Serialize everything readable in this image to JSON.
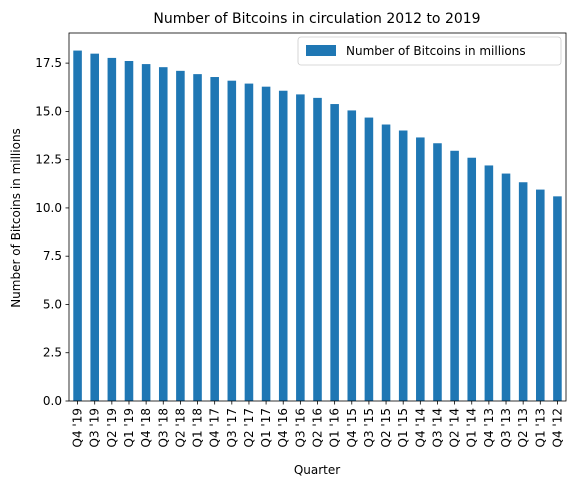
{
  "chart_data": {
    "type": "bar",
    "title": "Number of Bitcoins in circulation 2012 to 2019",
    "xlabel": "Quarter",
    "ylabel": "Number of Bitcoins in millions",
    "categories": [
      "Q4 '19",
      "Q3 '19",
      "Q2 '19",
      "Q1 '19",
      "Q4 '18",
      "Q3 '18",
      "Q2 '18",
      "Q1 '18",
      "Q4 '17",
      "Q3 '17",
      "Q2 '17",
      "Q1 '17",
      "Q4 '16",
      "Q3 '16",
      "Q2 '16",
      "Q1 '16",
      "Q4 '15",
      "Q3 '15",
      "Q2 '15",
      "Q1 '15",
      "Q4 '14",
      "Q3 '14",
      "Q2 '14",
      "Q1 '14",
      "Q4 '13",
      "Q3 '13",
      "Q2 '13",
      "Q1 '13",
      "Q4 '12"
    ],
    "series": [
      {
        "name": "Number of Bitcoins in millions",
        "values": [
          18.15,
          17.99,
          17.77,
          17.61,
          17.45,
          17.29,
          17.1,
          16.93,
          16.78,
          16.59,
          16.44,
          16.28,
          16.07,
          15.88,
          15.7,
          15.38,
          15.05,
          14.68,
          14.32,
          14.01,
          13.65,
          13.35,
          12.96,
          12.6,
          12.2,
          11.78,
          11.33,
          10.95,
          10.6
        ],
        "color": "#1f77b4"
      }
    ],
    "ylim": [
      0,
      19.06
    ],
    "yticks": [
      "0.0",
      "2.5",
      "5.0",
      "7.5",
      "10.0",
      "12.5",
      "15.0",
      "17.5"
    ],
    "grid": false,
    "legend_position": "top-right"
  }
}
